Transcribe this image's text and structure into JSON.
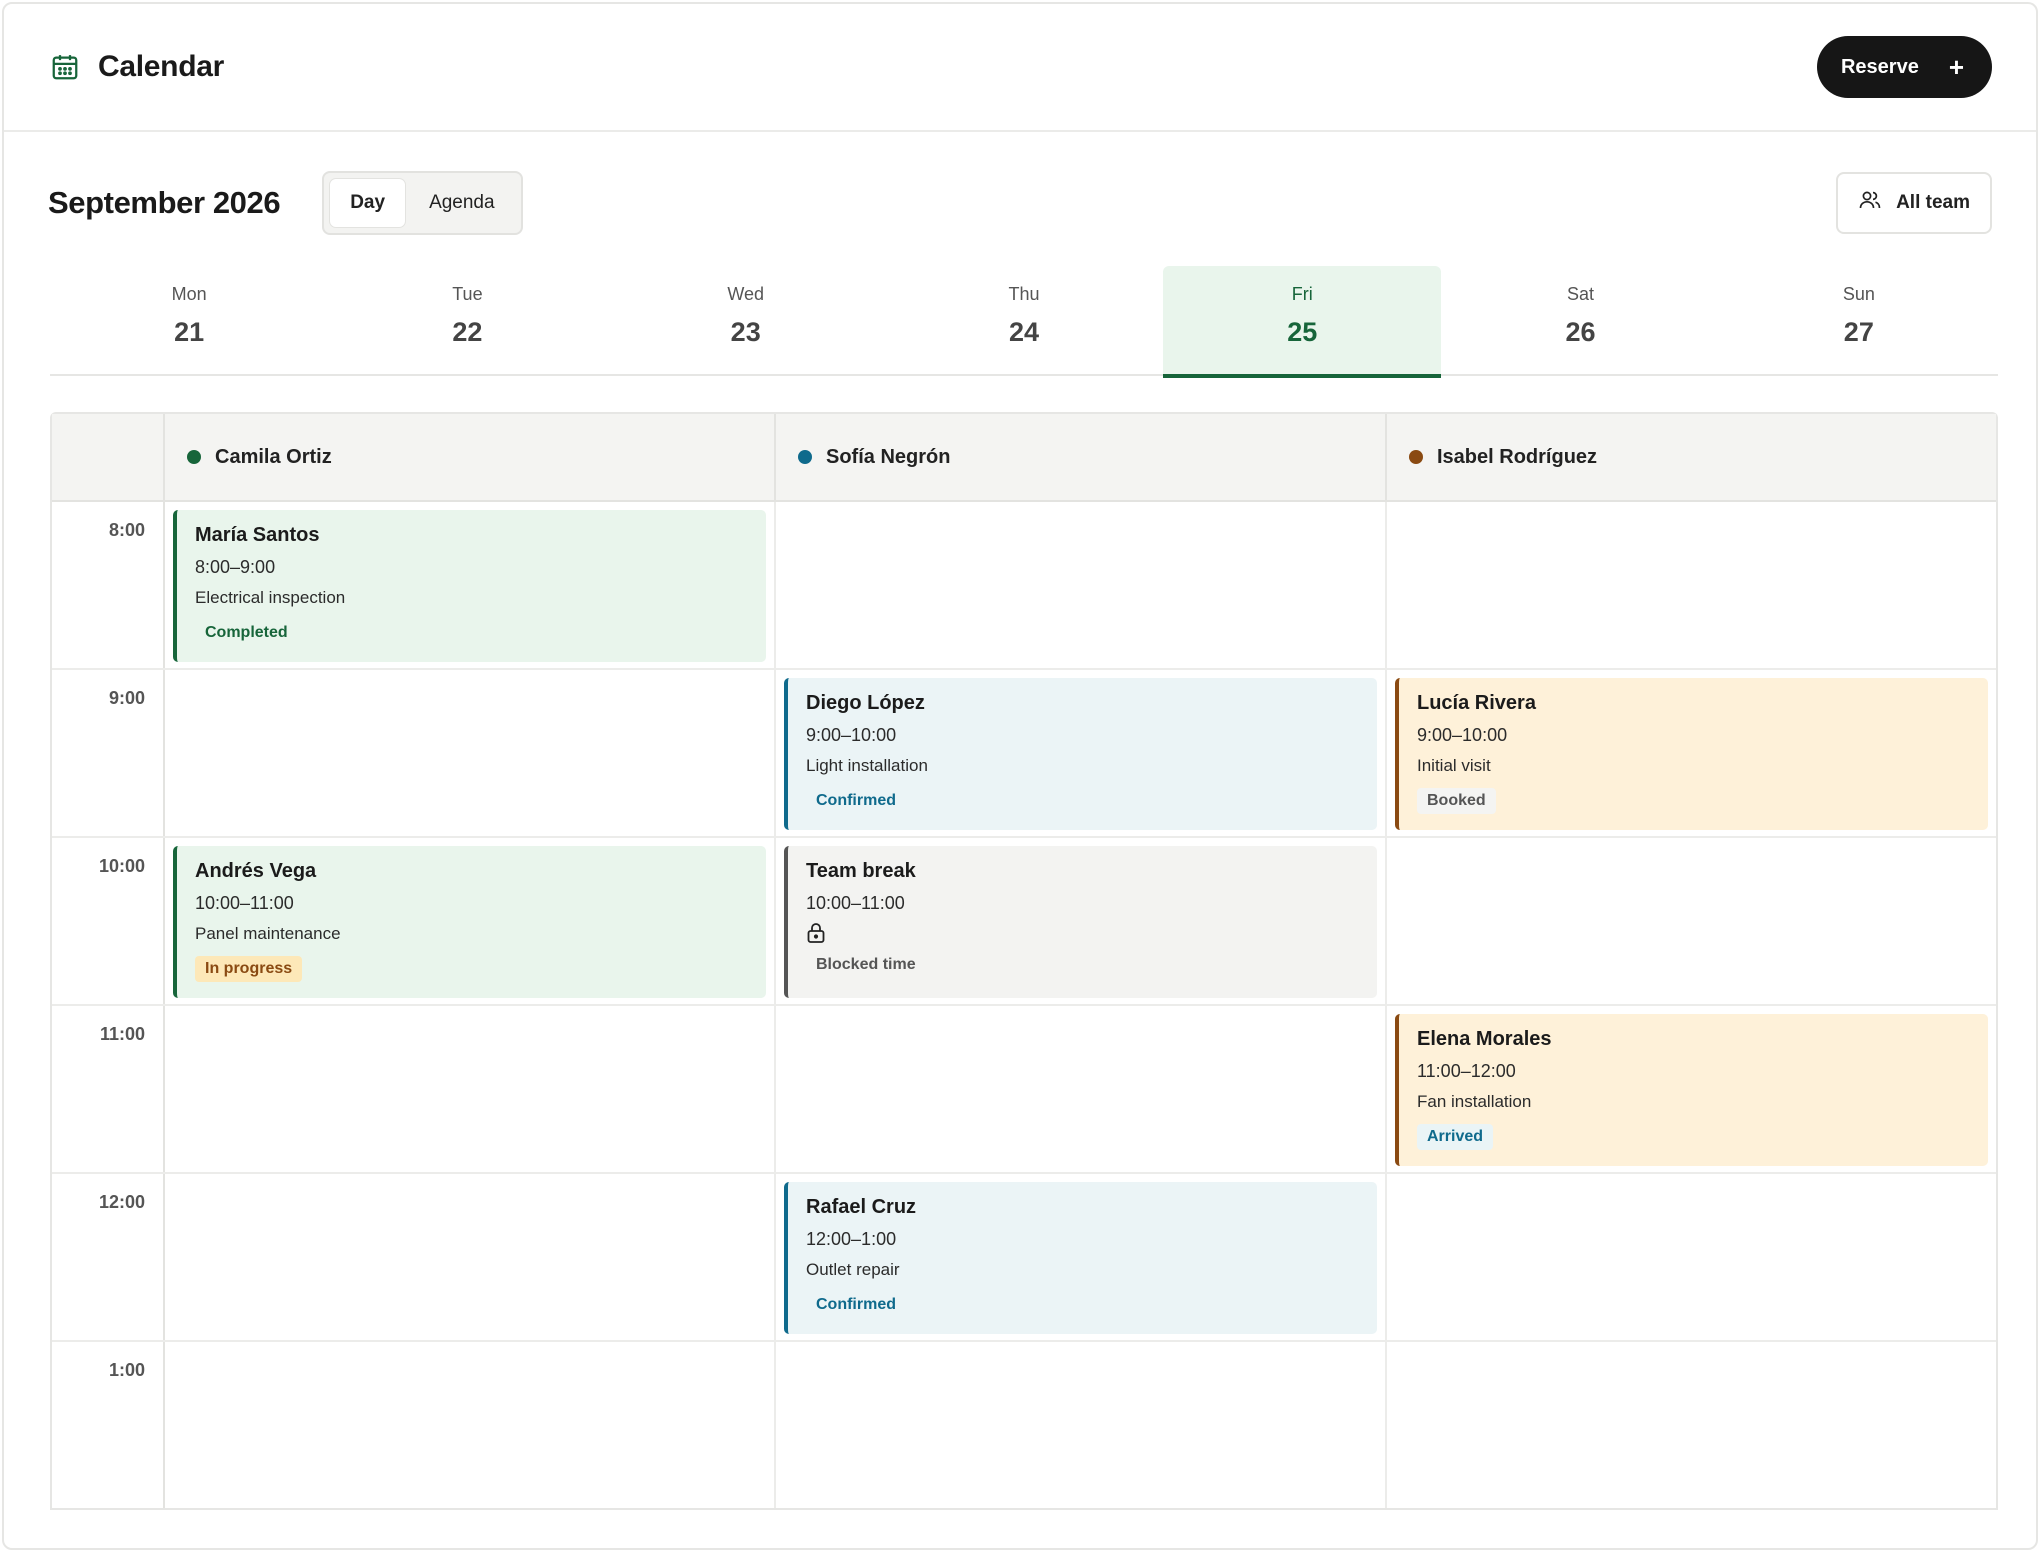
{
  "header": {
    "title": "Calendar",
    "reserve_label": "Reserve",
    "reserve_icon": "+"
  },
  "toolbar": {
    "month": "September 2026",
    "views": [
      "Day",
      "Agenda"
    ],
    "active_view": "Day",
    "team_label": "All team"
  },
  "days": [
    {
      "name": "Mon",
      "num": "21"
    },
    {
      "name": "Tue",
      "num": "22"
    },
    {
      "name": "Wed",
      "num": "23"
    },
    {
      "name": "Thu",
      "num": "24"
    },
    {
      "name": "Fri",
      "num": "25"
    },
    {
      "name": "Sat",
      "num": "26"
    },
    {
      "name": "Sun",
      "num": "27"
    }
  ],
  "active_day": "Fri",
  "staff": [
    {
      "name": "Camila Ortiz",
      "color": "#17653a"
    },
    {
      "name": "Sofía Negrón",
      "color": "#0f6a8c"
    },
    {
      "name": "Isabel Rodríguez",
      "color": "#8a4a12"
    }
  ],
  "times": [
    "8:00",
    "9:00",
    "10:00",
    "11:00",
    "12:00",
    "1:00"
  ],
  "appointments": {
    "a1": {
      "client": "María Santos",
      "time": "8:00–9:00",
      "service": "Electrical inspection",
      "status": "Completed"
    },
    "a2": {
      "client": "Diego López",
      "time": "9:00–10:00",
      "service": "Light installation",
      "status": "Confirmed"
    },
    "a3": {
      "client": "Lucía Rivera",
      "time": "9:00–10:00",
      "service": "Initial visit",
      "status": "Booked"
    },
    "a4": {
      "client": "Andrés Vega",
      "time": "10:00–11:00",
      "service": "Panel maintenance",
      "status": "In progress"
    },
    "a5": {
      "client": "Team break",
      "time": "10:00–11:00",
      "icon": "lock-icon",
      "status": "Blocked time"
    },
    "a6": {
      "client": "Elena Morales",
      "time": "11:00–12:00",
      "service": "Fan installation",
      "status": "Arrived"
    },
    "a7": {
      "client": "Rafael Cruz",
      "time": "12:00–1:00",
      "service": "Outlet repair",
      "status": "Confirmed"
    }
  }
}
